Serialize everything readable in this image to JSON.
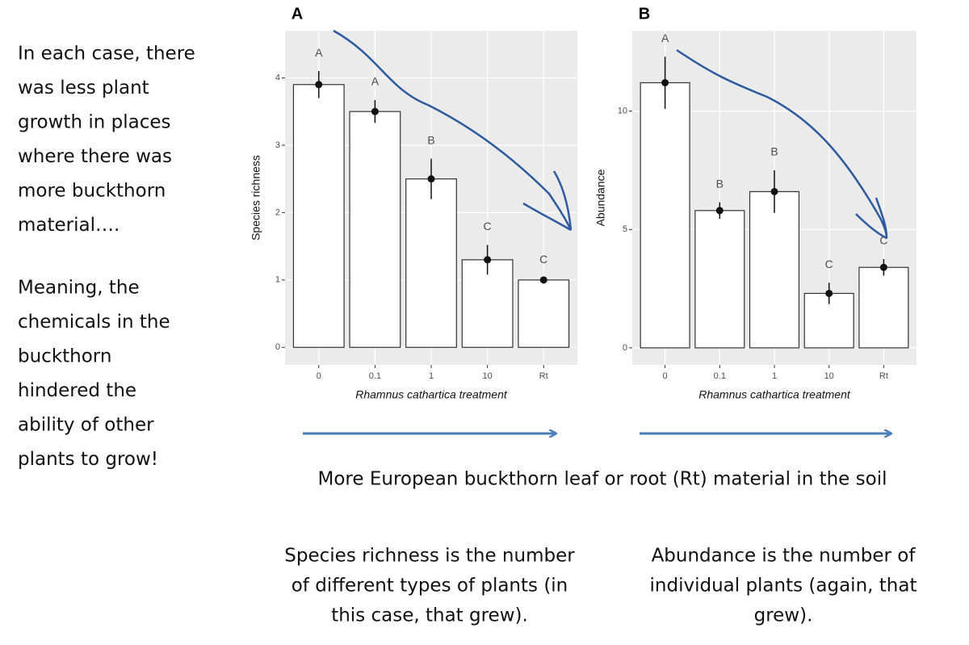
{
  "chart_data": [
    {
      "type": "bar",
      "panel": "A",
      "y_label": "Species richness",
      "x_label": "Rhamnus cathartica treatment",
      "categories": [
        "0",
        "0.1",
        "1",
        "10",
        "Rt"
      ],
      "values": [
        3.9,
        3.5,
        2.5,
        1.3,
        1.0
      ],
      "errors": [
        0.2,
        0.17,
        0.3,
        0.22,
        0.03
      ],
      "group_labels": [
        "A",
        "A",
        "B",
        "C",
        "C"
      ],
      "ylim": [
        -0.26,
        4.7
      ],
      "yticks": [
        0,
        1,
        2,
        3,
        4
      ],
      "grid": true,
      "color": "#ffffff"
    },
    {
      "type": "bar",
      "panel": "B",
      "y_label": "Abundance",
      "x_label": "Rhamnus cathartica treatment",
      "categories": [
        "0",
        "0.1",
        "1",
        "10",
        "Rt"
      ],
      "values": [
        11.2,
        5.8,
        6.6,
        2.3,
        3.4
      ],
      "errors": [
        1.1,
        0.35,
        0.9,
        0.45,
        0.35
      ],
      "group_labels": [
        "A",
        "B",
        "B",
        "C",
        "C"
      ],
      "ylim": [
        -0.72,
        13.4
      ],
      "yticks": [
        0,
        5,
        10
      ],
      "grid": true,
      "color": "#ffffff"
    }
  ],
  "side_text": {
    "paragraph_1": [
      "In each case, there",
      "was less plant",
      "growth in places",
      "where there was",
      "more buckthorn",
      "material…."
    ],
    "paragraph_2": [
      "Meaning, the",
      "chemicals in the",
      "buckthorn",
      "hindered the",
      "ability of other",
      "plants to grow!"
    ]
  },
  "caption": "More European buckthorn leaf or root (Rt) material in the soil",
  "notes": {
    "left": [
      "Species richness is the number",
      "of different types of plants (in",
      "this case, that grew)."
    ],
    "right": [
      "Abundance is the number of",
      "individual plants (again, that",
      "grew)."
    ]
  }
}
